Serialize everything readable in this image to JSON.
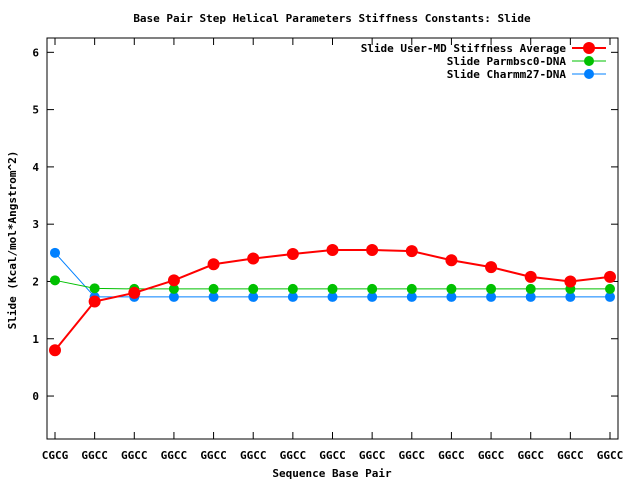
{
  "chart_data": {
    "type": "line",
    "title": "Base Pair Step Helical Parameters Stiffness Constants: Slide",
    "xlabel": "Sequence Base Pair",
    "ylabel": "Slide (Kcal/mol*Angstrom^2)",
    "categories": [
      "CGCG",
      "GGCC",
      "GGCC",
      "GGCC",
      "GGCC",
      "GGCC",
      "GGCC",
      "GGCC",
      "GGCC",
      "GGCC",
      "GGCC",
      "GGCC",
      "GGCC",
      "GGCC",
      "GGCC"
    ],
    "ylim": [
      -0.75,
      6.25
    ],
    "yticks": [
      "0",
      "1",
      "2",
      "3",
      "4",
      "5",
      "6"
    ],
    "ytick_values": [
      0,
      1,
      2,
      3,
      4,
      5,
      6
    ],
    "grid": false,
    "legend_position": "top-right",
    "series": [
      {
        "name": "Slide User-MD Stiffness Average",
        "color": "#ff0000",
        "marker": "large",
        "values": [
          0.8,
          1.65,
          1.8,
          2.02,
          2.3,
          2.4,
          2.48,
          2.55,
          2.55,
          2.53,
          2.37,
          2.25,
          2.08,
          2.0,
          2.08
        ]
      },
      {
        "name": "Slide Parmbsc0-DNA",
        "color": "#00c000",
        "marker": "medium",
        "values": [
          2.02,
          1.88,
          1.87,
          1.87,
          1.87,
          1.87,
          1.87,
          1.87,
          1.87,
          1.87,
          1.87,
          1.87,
          1.87,
          1.87,
          1.87
        ]
      },
      {
        "name": "Slide Charmm27-DNA",
        "color": "#0080ff",
        "marker": "medium",
        "values": [
          2.5,
          1.73,
          1.73,
          1.73,
          1.73,
          1.73,
          1.73,
          1.73,
          1.73,
          1.73,
          1.73,
          1.73,
          1.73,
          1.73,
          1.73
        ]
      }
    ]
  }
}
